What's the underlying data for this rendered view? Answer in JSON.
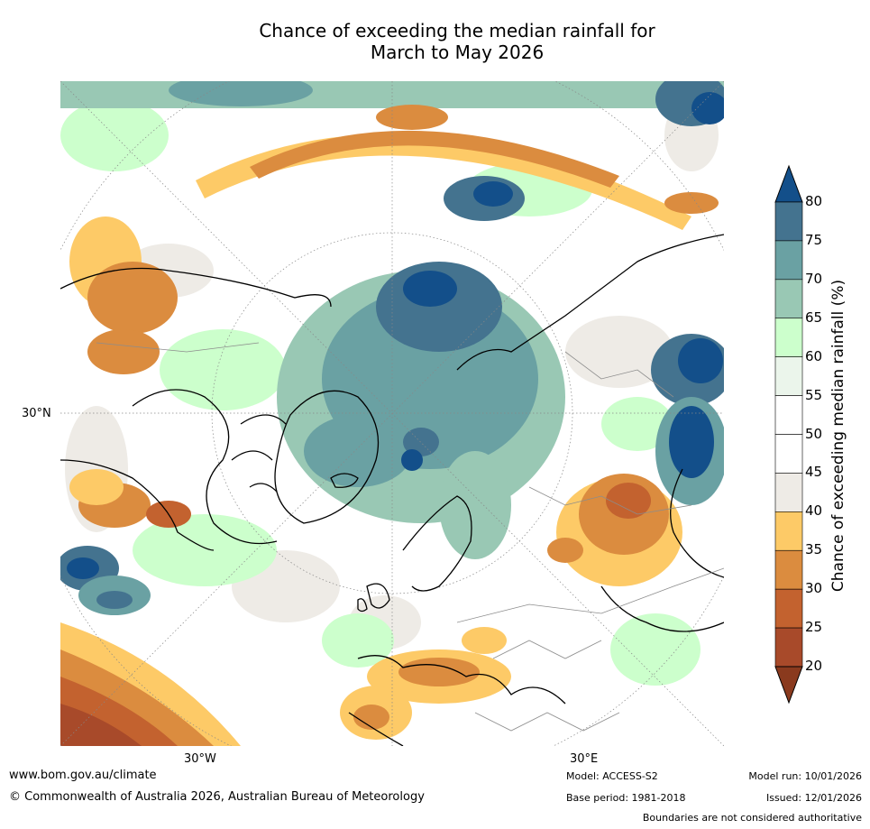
{
  "title": {
    "line1": "Chance of exceeding the median rainfall for",
    "line2": "March to May 2026"
  },
  "map": {
    "projection": "north polar stereographic",
    "lon_labels": [
      "30°W",
      "30°E"
    ],
    "lat_labels": [
      "30°N"
    ],
    "colors": {
      "land_background": "#ffffff",
      "coastline": "#000000",
      "border": "#8c8c8c",
      "graticule": "#888888"
    }
  },
  "colorbar": {
    "label": "Chance of exceeding median rainfall (%)",
    "ticks": [
      "80",
      "75",
      "70",
      "65",
      "60",
      "55",
      "50",
      "45",
      "40",
      "35",
      "30",
      "25",
      "20"
    ],
    "bands": [
      {
        "from": 75,
        "to": 80,
        "color": "#44738f"
      },
      {
        "from": 70,
        "to": 75,
        "color": "#6aa1a3"
      },
      {
        "from": 65,
        "to": 70,
        "color": "#99c8b4"
      },
      {
        "from": 60,
        "to": 65,
        "color": "#ccffcc"
      },
      {
        "from": 55,
        "to": 60,
        "color": "#ebf5eb"
      },
      {
        "from": 50,
        "to": 55,
        "color": "#ffffff"
      },
      {
        "from": 45,
        "to": 50,
        "color": "#ffffff"
      },
      {
        "from": 40,
        "to": 45,
        "color": "#eeebe6"
      },
      {
        "from": 35,
        "to": 40,
        "color": "#fdca67"
      },
      {
        "from": 30,
        "to": 35,
        "color": "#db8c3f"
      },
      {
        "from": 25,
        "to": 30,
        "color": "#c3622f"
      },
      {
        "from": 20,
        "to": 25,
        "color": "#a84a2a"
      }
    ],
    "top_extension_color": "#134f8a",
    "bottom_extension_color": "#8a3a1e"
  },
  "footer": {
    "website": "www.bom.gov.au/climate",
    "copyright": "© Commonwealth of Australia 2026, Australian Bureau of Meteorology",
    "model": "Model: ACCESS-S2",
    "base_period": "Base period: 1981-2018",
    "model_run": "Model run: 10/01/2026",
    "issued": "Issued: 12/01/2026",
    "disclaimer": "Boundaries are not considered authoritative"
  }
}
